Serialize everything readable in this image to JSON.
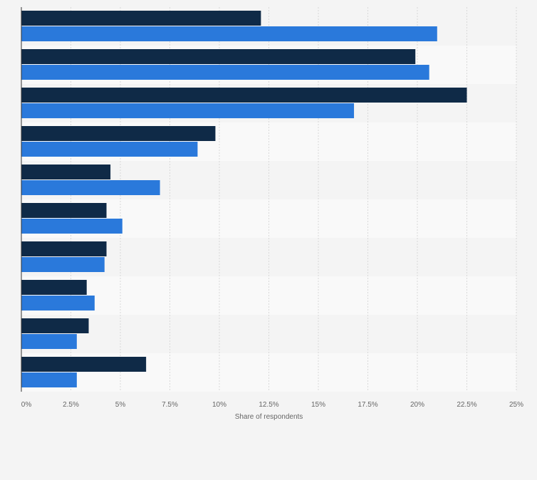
{
  "chart_data": {
    "type": "bar",
    "orientation": "horizontal",
    "categories": [
      "",
      "",
      "",
      "",
      "",
      "",
      "",
      "",
      "",
      ""
    ],
    "series": [
      {
        "color": "#0f2a47",
        "values": [
          12.1,
          19.9,
          22.5,
          9.8,
          4.5,
          4.3,
          4.3,
          3.3,
          3.4,
          6.3
        ]
      },
      {
        "color": "#2a79db",
        "values": [
          21.0,
          20.6,
          16.8,
          8.9,
          7.0,
          5.1,
          4.2,
          3.7,
          2.8,
          2.8
        ]
      }
    ],
    "xlim": [
      0,
      25
    ],
    "xticks": [
      "0%",
      "2.5%",
      "5%",
      "7.5%",
      "10%",
      "12.5%",
      "15%",
      "17.5%",
      "20%",
      "22.5%",
      "25%"
    ],
    "xlabel": "Share of respondents",
    "ylabel": "",
    "grid": "vertical dashed"
  }
}
